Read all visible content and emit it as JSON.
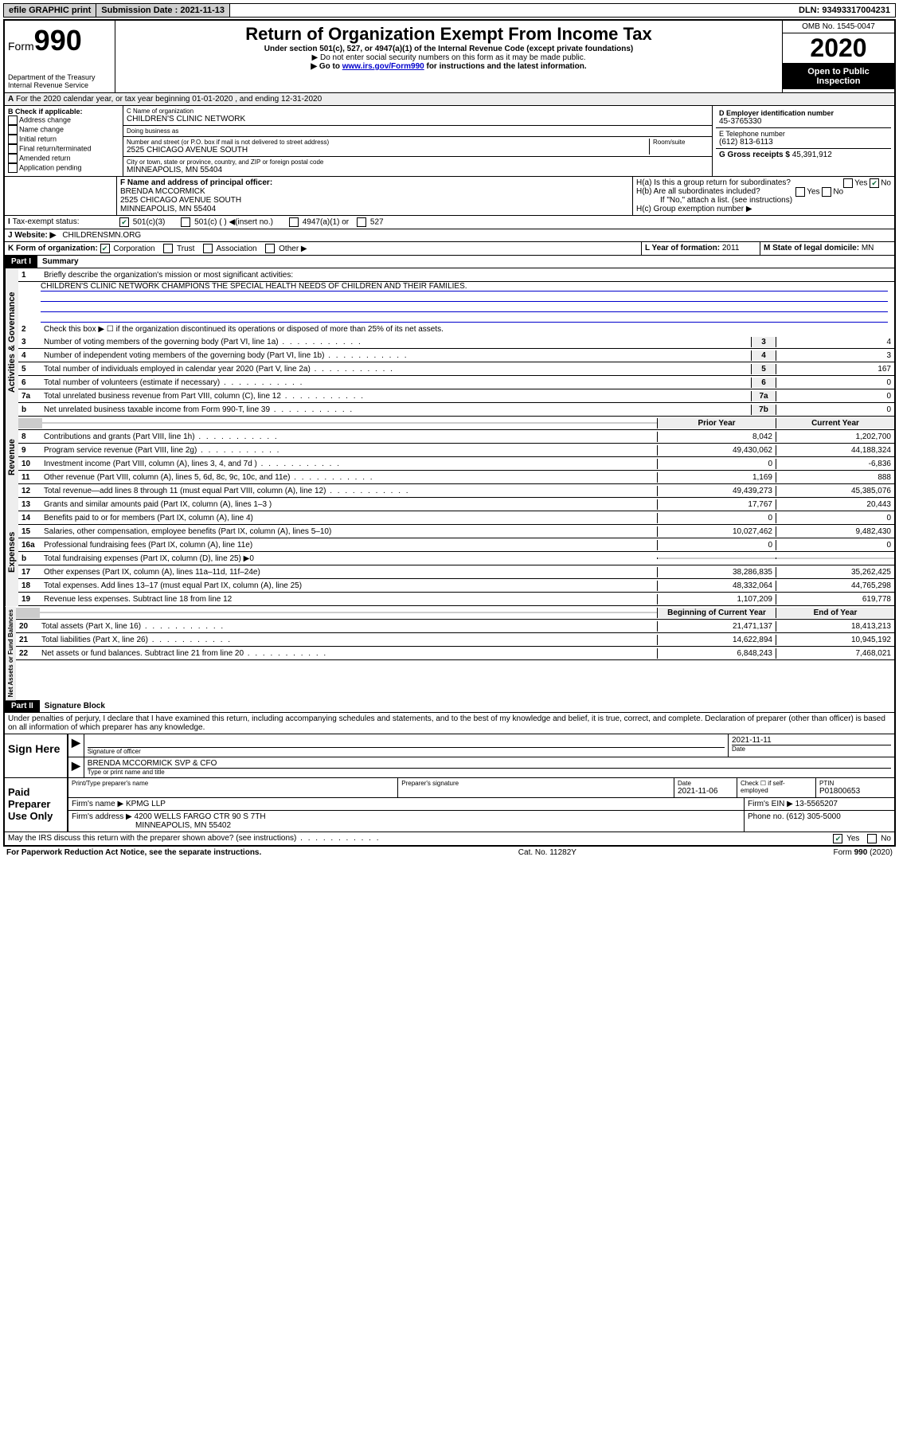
{
  "top": {
    "efile": "efile GRAPHIC print",
    "sub_label": "Submission Date :",
    "sub_date": "2021-11-13",
    "dln_label": "DLN:",
    "dln": "93493317004231"
  },
  "header": {
    "form": "Form",
    "num": "990",
    "dept": "Department of the Treasury\nInternal Revenue Service",
    "title": "Return of Organization Exempt From Income Tax",
    "sub1": "Under section 501(c), 527, or 4947(a)(1) of the Internal Revenue Code (except private foundations)",
    "sub2": "▶ Do not enter social security numbers on this form as it may be made public.",
    "sub3_pre": "▶ Go to ",
    "sub3_link": "www.irs.gov/Form990",
    "sub3_post": " for instructions and the latest information.",
    "omb": "OMB No. 1545-0047",
    "year": "2020",
    "insp": "Open to Public Inspection"
  },
  "period": "For the 2020 calendar year, or tax year beginning 01-01-2020   , and ending 12-31-2020",
  "b": {
    "label": "B Check if applicable:",
    "opts": [
      "Address change",
      "Name change",
      "Initial return",
      "Final return/terminated",
      "Amended return",
      "Application pending"
    ]
  },
  "c": {
    "name_label": "C Name of organization",
    "name": "CHILDREN'S CLINIC NETWORK",
    "dba_label": "Doing business as",
    "dba": "",
    "addr_label": "Number and street (or P.O. box if mail is not delivered to street address)",
    "room": "Room/suite",
    "addr": "2525 CHICAGO AVENUE SOUTH",
    "city_label": "City or town, state or province, country, and ZIP or foreign postal code",
    "city": "MINNEAPOLIS, MN  55404"
  },
  "d": {
    "ein_label": "D Employer identification number",
    "ein": "45-3765330",
    "tel_label": "E Telephone number",
    "tel": "(612) 813-6113",
    "gross_label": "G Gross receipts $",
    "gross": "45,391,912"
  },
  "f": {
    "label": "F  Name and address of principal officer:",
    "name": "BRENDA MCCORMICK",
    "addr1": "2525 CHICAGO AVENUE SOUTH",
    "addr2": "MINNEAPOLIS, MN  55404"
  },
  "h": {
    "a": "H(a)  Is this a group return for subordinates?",
    "b": "H(b)  Are all subordinates included?",
    "b_note": "If \"No,\" attach a list. (see instructions)",
    "c": "H(c)  Group exemption number ▶"
  },
  "i": {
    "label": "Tax-exempt status:",
    "opts": [
      "501(c)(3)",
      "501(c) (  ) ◀(insert no.)",
      "4947(a)(1) or",
      "527"
    ]
  },
  "j": {
    "label": "J   Website: ▶",
    "val": "CHILDRENSMN.ORG"
  },
  "k": {
    "label": "K Form of organization:",
    "opts": [
      "Corporation",
      "Trust",
      "Association",
      "Other ▶"
    ],
    "l_label": "L Year of formation:",
    "l_val": "2011",
    "m_label": "M State of legal domicile:",
    "m_val": "MN"
  },
  "part1": {
    "header": "Part I",
    "title": "Summary",
    "l1": "Briefly describe the organization's mission or most significant activities:",
    "l1_val": "CHILDREN'S CLINIC NETWORK CHAMPIONS THE SPECIAL HEALTH NEEDS OF CHILDREN AND THEIR FAMILIES.",
    "l2": "Check this box ▶ ☐  if the organization discontinued its operations or disposed of more than 25% of its net assets.",
    "lines": [
      {
        "n": "3",
        "t": "Number of voting members of the governing body (Part VI, line 1a)",
        "k": "3",
        "v": "4"
      },
      {
        "n": "4",
        "t": "Number of independent voting members of the governing body (Part VI, line 1b)",
        "k": "4",
        "v": "3"
      },
      {
        "n": "5",
        "t": "Total number of individuals employed in calendar year 2020 (Part V, line 2a)",
        "k": "5",
        "v": "167"
      },
      {
        "n": "6",
        "t": "Total number of volunteers (estimate if necessary)",
        "k": "6",
        "v": "0"
      },
      {
        "n": "7a",
        "t": "Total unrelated business revenue from Part VIII, column (C), line 12",
        "k": "7a",
        "v": "0"
      },
      {
        "n": "b",
        "t": "Net unrelated business taxable income from Form 990-T, line 39",
        "k": "7b",
        "v": "0"
      }
    ],
    "col_prior": "Prior Year",
    "col_curr": "Current Year",
    "rev": [
      {
        "n": "8",
        "t": "Contributions and grants (Part VIII, line 1h)",
        "p": "8,042",
        "c": "1,202,700"
      },
      {
        "n": "9",
        "t": "Program service revenue (Part VIII, line 2g)",
        "p": "49,430,062",
        "c": "44,188,324"
      },
      {
        "n": "10",
        "t": "Investment income (Part VIII, column (A), lines 3, 4, and 7d )",
        "p": "0",
        "c": "-6,836"
      },
      {
        "n": "11",
        "t": "Other revenue (Part VIII, column (A), lines 5, 6d, 8c, 9c, 10c, and 11e)",
        "p": "1,169",
        "c": "888"
      },
      {
        "n": "12",
        "t": "Total revenue—add lines 8 through 11 (must equal Part VIII, column (A), line 12)",
        "p": "49,439,273",
        "c": "45,385,076"
      }
    ],
    "exp": [
      {
        "n": "13",
        "t": "Grants and similar amounts paid (Part IX, column (A), lines 1–3 )",
        "p": "17,767",
        "c": "20,443"
      },
      {
        "n": "14",
        "t": "Benefits paid to or for members (Part IX, column (A), line 4)",
        "p": "0",
        "c": "0"
      },
      {
        "n": "15",
        "t": "Salaries, other compensation, employee benefits (Part IX, column (A), lines 5–10)",
        "p": "10,027,462",
        "c": "9,482,430"
      },
      {
        "n": "16a",
        "t": "Professional fundraising fees (Part IX, column (A), line 11e)",
        "p": "0",
        "c": "0"
      },
      {
        "n": "b",
        "t": "Total fundraising expenses (Part IX, column (D), line 25) ▶0",
        "p": "",
        "c": "",
        "shade": true
      },
      {
        "n": "17",
        "t": "Other expenses (Part IX, column (A), lines 11a–11d, 11f–24e)",
        "p": "38,286,835",
        "c": "35,262,425"
      },
      {
        "n": "18",
        "t": "Total expenses. Add lines 13–17 (must equal Part IX, column (A), line 25)",
        "p": "48,332,064",
        "c": "44,765,298"
      },
      {
        "n": "19",
        "t": "Revenue less expenses. Subtract line 18 from line 12",
        "p": "1,107,209",
        "c": "619,778"
      }
    ],
    "col_beg": "Beginning of Current Year",
    "col_end": "End of Year",
    "net": [
      {
        "n": "20",
        "t": "Total assets (Part X, line 16)",
        "p": "21,471,137",
        "c": "18,413,213"
      },
      {
        "n": "21",
        "t": "Total liabilities (Part X, line 26)",
        "p": "14,622,894",
        "c": "10,945,192"
      },
      {
        "n": "22",
        "t": "Net assets or fund balances. Subtract line 21 from line 20",
        "p": "6,848,243",
        "c": "7,468,021"
      }
    ]
  },
  "part2": {
    "header": "Part II",
    "title": "Signature Block",
    "decl": "Under penalties of perjury, I declare that I have examined this return, including accompanying schedules and statements, and to the best of my knowledge and belief, it is true, correct, and complete. Declaration of preparer (other than officer) is based on all information of which preparer has any knowledge."
  },
  "sign": {
    "label": "Sign Here",
    "sig": "Signature of officer",
    "date": "2021-11-11",
    "date_label": "Date",
    "name": "BRENDA MCCORMICK SVP & CFO",
    "name_label": "Type or print name and title"
  },
  "prep": {
    "label": "Paid Preparer Use Only",
    "h1": "Print/Type preparer's name",
    "h2": "Preparer's signature",
    "h3_label": "Date",
    "h3": "2021-11-06",
    "h4": "Check ☐  if self-employed",
    "h5_label": "PTIN",
    "h5": "P01800653",
    "firm_label": "Firm's name    ▶",
    "firm": "KPMG LLP",
    "ein_label": "Firm's EIN ▶",
    "ein": "13-5565207",
    "addr_label": "Firm's address ▶",
    "addr1": "4200 WELLS FARGO CTR 90 S 7TH",
    "addr2": "MINNEAPOLIS, MN  55402",
    "phone_label": "Phone no.",
    "phone": "(612) 305-5000"
  },
  "footer": {
    "q": "May the IRS discuss this return with the preparer shown above? (see instructions)",
    "yes": "Yes",
    "no": "No",
    "pra": "For Paperwork Reduction Act Notice, see the separate instructions.",
    "cat": "Cat. No. 11282Y",
    "form": "Form 990 (2020)"
  },
  "vert": {
    "gov": "Activities & Governance",
    "rev": "Revenue",
    "exp": "Expenses",
    "net": "Net Assets or Fund Balances"
  }
}
